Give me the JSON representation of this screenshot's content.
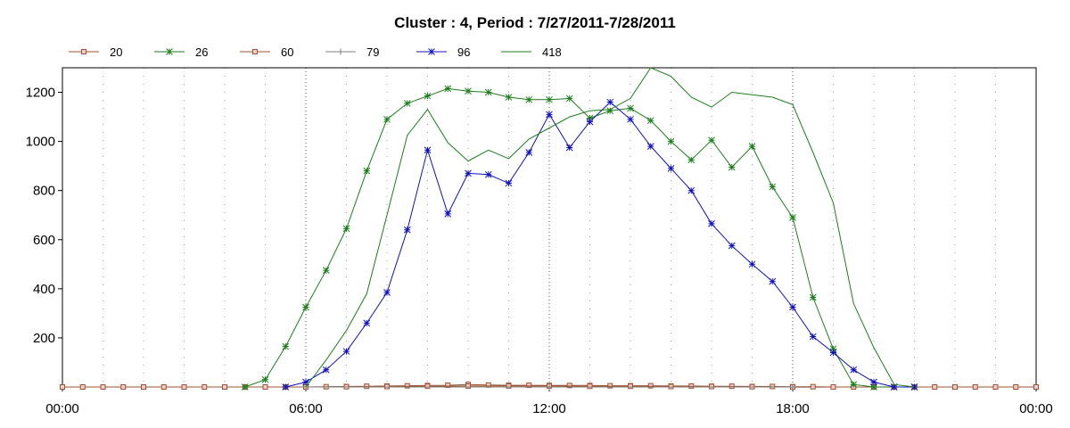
{
  "chart_data": {
    "type": "line",
    "title": "Cluster : 4, Period : 7/27/2011-7/28/2011",
    "xlabel": "",
    "ylabel": "",
    "x_range_hours": [
      0,
      24
    ],
    "ylim": [
      0,
      1300
    ],
    "x_tick_labels": [
      "00:00",
      "06:00",
      "12:00",
      "18:00",
      "00:00"
    ],
    "y_ticks": [
      200,
      400,
      600,
      800,
      1000,
      1200
    ],
    "grid": "vertical dotted",
    "legend_position": "top-left",
    "series": [
      {
        "name": "20",
        "color": "#a0502d",
        "marker": "square",
        "x": [
          0,
          0.5,
          1,
          1.5,
          2,
          2.5,
          3,
          3.5,
          4,
          4.5,
          5,
          5.5,
          6,
          6.5,
          7,
          7.5,
          8,
          8.5,
          9,
          9.5,
          10,
          10.5,
          11,
          11.5,
          12,
          12.5,
          13,
          13.5,
          14,
          14.5,
          15,
          15.5,
          16,
          16.5,
          17,
          17.5,
          18,
          18.5,
          19,
          19.5,
          20,
          20.5,
          21,
          21.5,
          22,
          22.5,
          23,
          23.5,
          24
        ],
        "y": [
          0,
          0,
          0,
          0,
          0,
          0,
          0,
          0,
          0,
          0,
          0,
          0,
          0,
          1,
          2,
          3,
          4,
          5,
          6,
          7,
          10,
          8,
          7,
          7,
          6,
          6,
          6,
          5,
          5,
          5,
          4,
          4,
          3,
          3,
          2,
          2,
          1,
          1,
          0,
          0,
          0,
          0,
          0,
          0,
          0,
          0,
          0,
          0,
          0
        ]
      },
      {
        "name": "26",
        "color": "#1a7f1a",
        "marker": "star",
        "x": [
          4.5,
          5,
          5.5,
          6,
          6.5,
          7,
          7.5,
          8,
          8.5,
          9,
          9.5,
          10,
          10.5,
          11,
          11.5,
          12,
          12.5,
          13,
          13.5,
          14,
          14.5,
          15,
          15.5,
          16,
          16.5,
          17,
          17.5,
          18,
          18.5,
          19,
          19.5,
          20,
          20.5,
          21
        ],
        "y": [
          0,
          30,
          165,
          325,
          475,
          645,
          880,
          1090,
          1155,
          1185,
          1215,
          1205,
          1200,
          1180,
          1170,
          1170,
          1175,
          1095,
          1125,
          1135,
          1085,
          1000,
          925,
          1005,
          895,
          980,
          815,
          690,
          365,
          155,
          10,
          0,
          0,
          0
        ]
      },
      {
        "name": "60",
        "color": "#a0502d",
        "marker": "square",
        "x": [
          6,
          7,
          8,
          9,
          10,
          11,
          12,
          13,
          14,
          15,
          16,
          17,
          18
        ],
        "y": [
          0,
          1,
          2,
          3,
          4,
          4,
          4,
          3,
          3,
          2,
          2,
          1,
          0
        ]
      },
      {
        "name": "79",
        "color": "#808080",
        "marker": "plus",
        "x": [
          6,
          12,
          18
        ],
        "y": [
          0,
          0,
          0
        ]
      },
      {
        "name": "96",
        "color": "#1010c0",
        "marker": "star",
        "x": [
          5.5,
          6,
          6.5,
          7,
          7.5,
          8,
          8.5,
          9,
          9.5,
          10,
          10.5,
          11,
          11.5,
          12,
          12.5,
          13,
          13.5,
          14,
          14.5,
          15,
          15.5,
          16,
          16.5,
          17,
          17.5,
          18,
          18.5,
          19,
          19.5,
          20,
          20.5,
          21
        ],
        "y": [
          0,
          20,
          70,
          145,
          260,
          385,
          640,
          965,
          705,
          870,
          865,
          830,
          955,
          1110,
          975,
          1080,
          1160,
          1090,
          980,
          890,
          800,
          665,
          575,
          500,
          430,
          325,
          205,
          140,
          70,
          20,
          0,
          0
        ]
      },
      {
        "name": "418",
        "color": "#1a7f1a",
        "marker": "none",
        "x": [
          6,
          6.5,
          7,
          7.5,
          8,
          8.5,
          9,
          9.5,
          10,
          10.5,
          11,
          11.5,
          12,
          12.5,
          13,
          13.5,
          14,
          14.5,
          15,
          15.5,
          16,
          16.5,
          17,
          17.5,
          18,
          18.5,
          19,
          19.5,
          20,
          20.5,
          21
        ],
        "y": [
          0,
          110,
          230,
          380,
          700,
          1025,
          1130,
          995,
          920,
          965,
          930,
          1010,
          1055,
          1100,
          1125,
          1130,
          1175,
          1300,
          1265,
          1180,
          1140,
          1200,
          1190,
          1180,
          1150,
          955,
          750,
          340,
          160,
          10,
          0
        ]
      }
    ]
  }
}
